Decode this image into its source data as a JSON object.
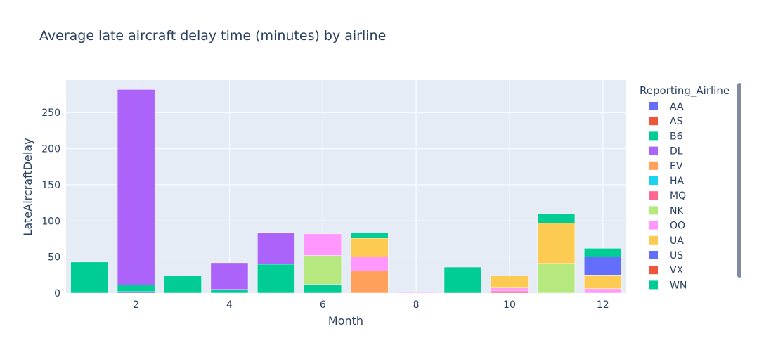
{
  "chart_data": {
    "type": "bar",
    "barmode": "stack",
    "title": "Average late aircraft delay time (minutes) by airline",
    "xlabel": "Month",
    "ylabel": "LateAircraftDelay",
    "xlim": [
      0.5,
      12.5
    ],
    "ylim": [
      0,
      295
    ],
    "x_ticks": [
      2,
      4,
      6,
      8,
      10,
      12
    ],
    "y_ticks": [
      0,
      50,
      100,
      150,
      200,
      250
    ],
    "grid": true,
    "legend": {
      "title": "Reporting_Airline",
      "placement": "right",
      "scrollbar": true
    },
    "series": [
      {
        "name": "AA",
        "color": "#636efa",
        "points": [
          {
            "x": 2,
            "y": 2
          }
        ]
      },
      {
        "name": "AS",
        "color": "#EF553B",
        "points": []
      },
      {
        "name": "B6",
        "color": "#00cc96",
        "points": [
          {
            "x": 2,
            "y": 9
          },
          {
            "x": 4,
            "y": 5
          },
          {
            "x": 5,
            "y": 40
          },
          {
            "x": 6,
            "y": 12
          }
        ]
      },
      {
        "name": "DL",
        "color": "#ab63fa",
        "points": [
          {
            "x": 2,
            "y": 271
          },
          {
            "x": 4,
            "y": 37
          },
          {
            "x": 5,
            "y": 44
          }
        ]
      },
      {
        "name": "EV",
        "color": "#FFA15A",
        "points": [
          {
            "x": 7,
            "y": 31
          }
        ]
      },
      {
        "name": "HA",
        "color": "#19d3f3",
        "points": []
      },
      {
        "name": "MQ",
        "color": "#FF6692",
        "points": [
          {
            "x": 10,
            "y": 3
          }
        ]
      },
      {
        "name": "NK",
        "color": "#B6E880",
        "points": [
          {
            "x": 6,
            "y": 40
          },
          {
            "x": 11,
            "y": 41
          }
        ]
      },
      {
        "name": "OO",
        "color": "#FF97FF",
        "points": [
          {
            "x": 6,
            "y": 30
          },
          {
            "x": 7,
            "y": 19
          },
          {
            "x": 8,
            "y": 1
          },
          {
            "x": 10,
            "y": 4
          },
          {
            "x": 12,
            "y": 6
          }
        ]
      },
      {
        "name": "UA",
        "color": "#FECB52",
        "points": [
          {
            "x": 7,
            "y": 26
          },
          {
            "x": 10,
            "y": 17
          },
          {
            "x": 11,
            "y": 56
          },
          {
            "x": 12,
            "y": 19
          }
        ]
      },
      {
        "name": "US",
        "color": "#636efa",
        "points": [
          {
            "x": 12,
            "y": 25
          }
        ]
      },
      {
        "name": "VX",
        "color": "#EF553B",
        "points": []
      },
      {
        "name": "WN",
        "color": "#00cc96",
        "points": [
          {
            "x": 1,
            "y": 43
          },
          {
            "x": 3,
            "y": 24
          },
          {
            "x": 7,
            "y": 7
          },
          {
            "x": 9,
            "y": 36
          },
          {
            "x": 11,
            "y": 13
          },
          {
            "x": 12,
            "y": 12
          }
        ]
      }
    ]
  }
}
